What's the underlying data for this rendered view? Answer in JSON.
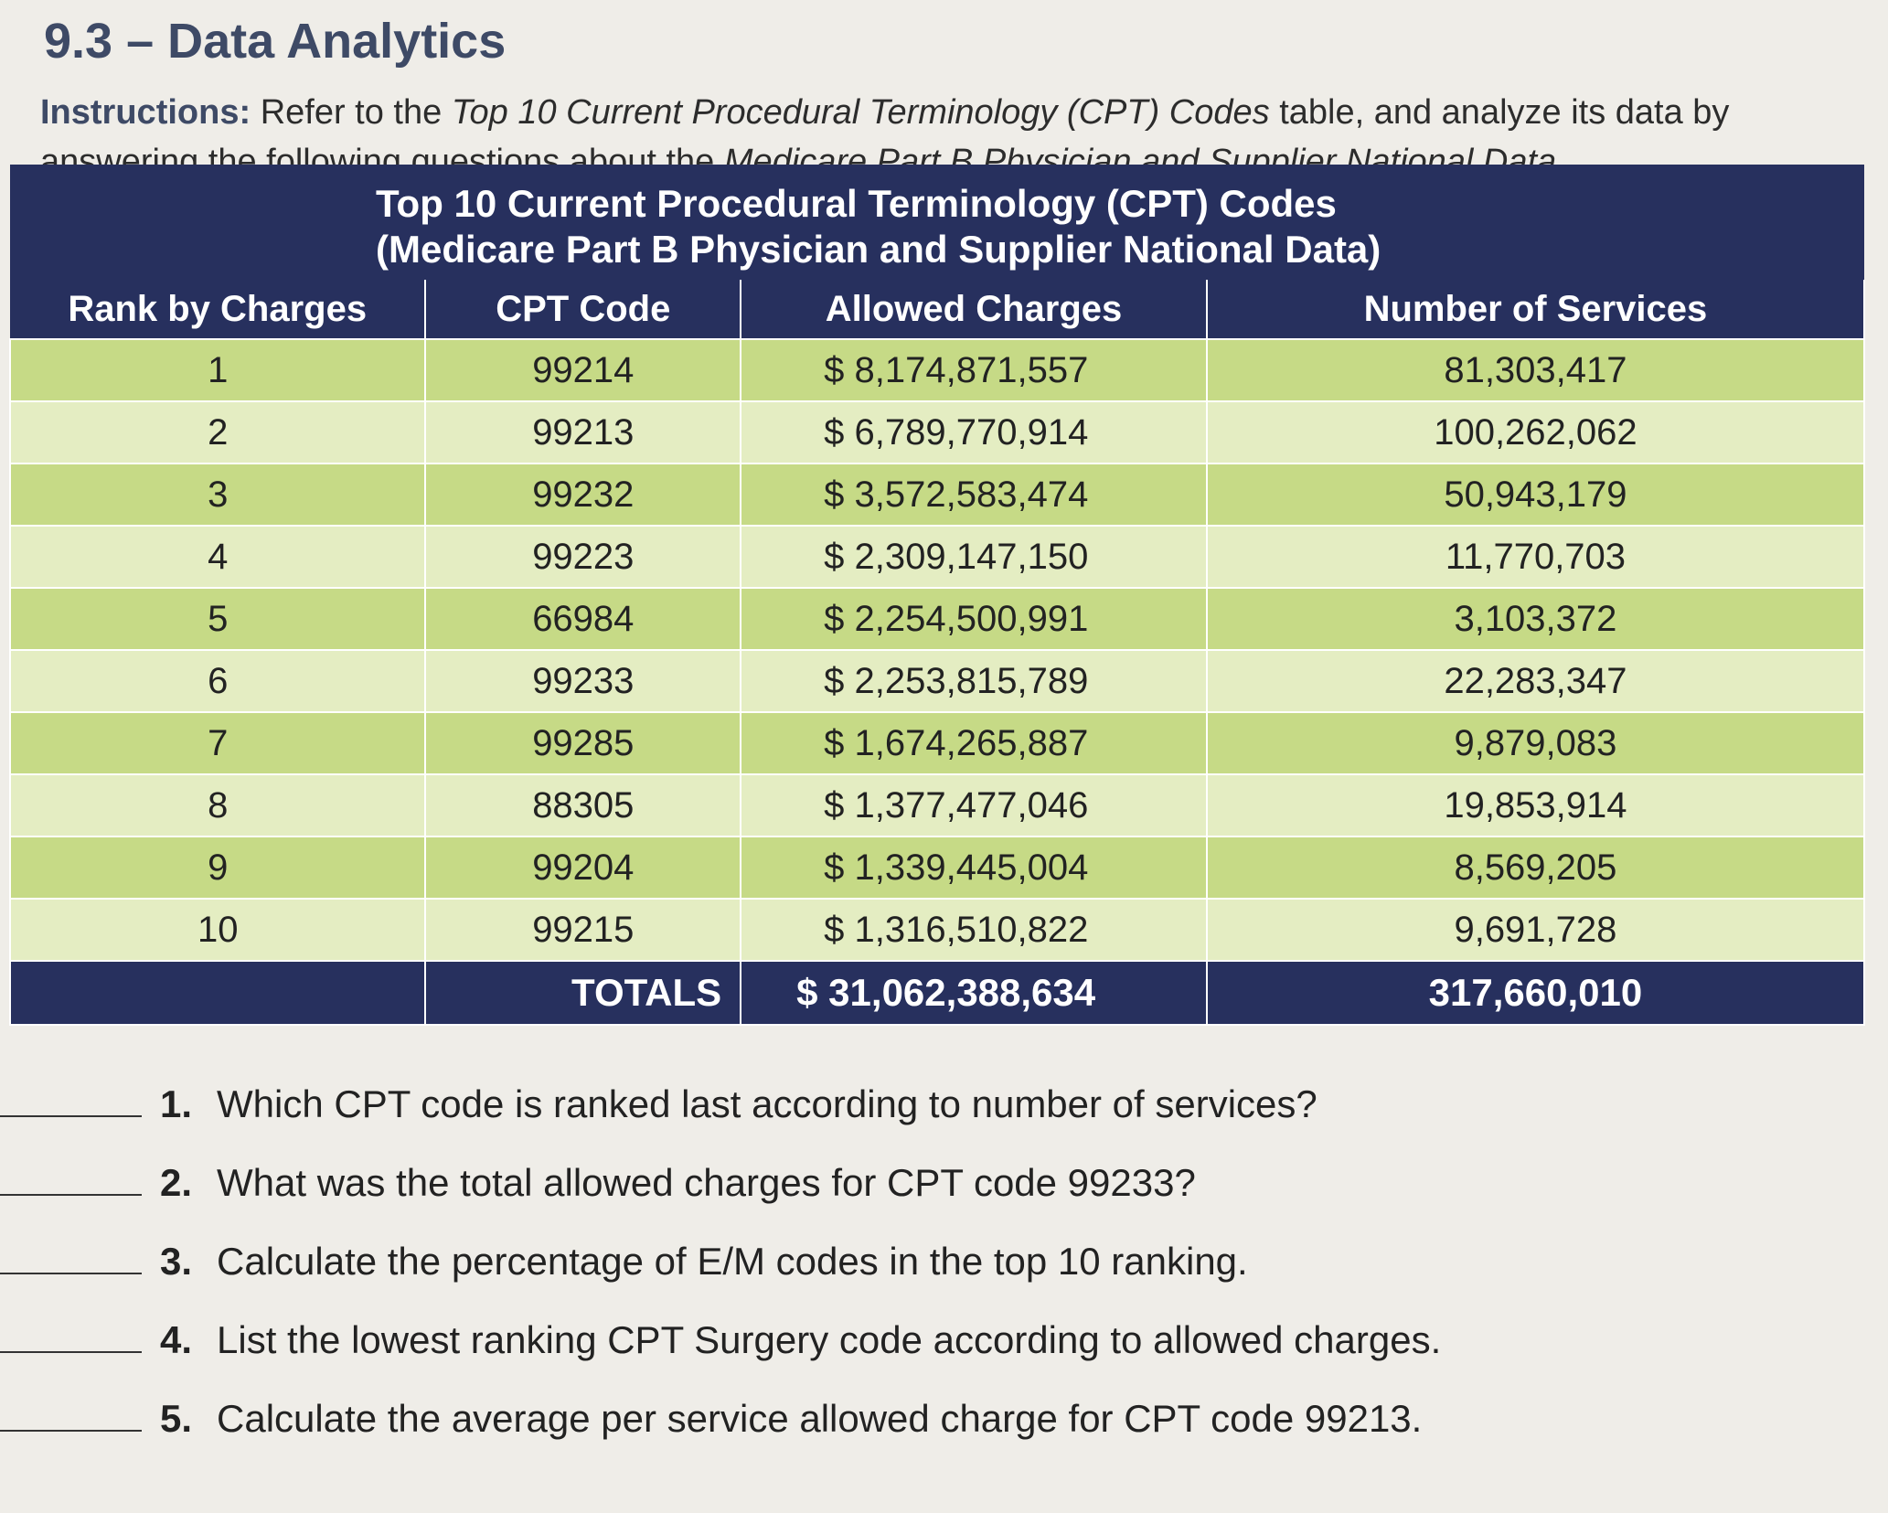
{
  "header": {
    "title": "9.3 – Data Analytics",
    "instructions": {
      "label": "Instructions:",
      "parts": [
        "Refer to the ",
        "Top 10 Current Procedural Terminology (CPT) Codes",
        " table, and analyze its data by answering the following questions about the ",
        "Medicare Part B Physician and Supplier National Data",
        "."
      ]
    }
  },
  "table": {
    "title": [
      "Top 10 Current Procedural Terminology (CPT) Codes",
      "(Medicare Part B Physician and Supplier National Data)"
    ],
    "columns": [
      "Rank by Charges",
      "CPT Code",
      "Allowed Charges",
      "Number of Services"
    ],
    "rows": [
      [
        "1",
        "99214",
        "$ 8,174,871,557",
        "81,303,417"
      ],
      [
        "2",
        "99213",
        "$ 6,789,770,914",
        "100,262,062"
      ],
      [
        "3",
        "99232",
        "$ 3,572,583,474",
        "50,943,179"
      ],
      [
        "4",
        "99223",
        "$ 2,309,147,150",
        "11,770,703"
      ],
      [
        "5",
        "66984",
        "$ 2,254,500,991",
        "3,103,372"
      ],
      [
        "6",
        "99233",
        "$ 2,253,815,789",
        "22,283,347"
      ],
      [
        "7",
        "99285",
        "$ 1,674,265,887",
        "9,879,083"
      ],
      [
        "8",
        "88305",
        "$ 1,377,477,046",
        "19,853,914"
      ],
      [
        "9",
        "99204",
        "$ 1,339,445,004",
        "8,569,205"
      ],
      [
        "10",
        "99215",
        "$ 1,316,510,822",
        "9,691,728"
      ]
    ],
    "totals": [
      "TOTALS",
      "$ 31,062,388,634",
      "317,660,010"
    ]
  },
  "questions": [
    {
      "number": "1.",
      "text": "Which CPT code is ranked last according to number of services?"
    },
    {
      "number": "2.",
      "text": "What was the total allowed charges for CPT code 99233?"
    },
    {
      "number": "3.",
      "text": "Calculate the percentage of E/M codes in the top 10 ranking."
    },
    {
      "number": "4.",
      "text": "List the lowest ranking CPT Surgery code according to allowed charges."
    },
    {
      "number": "5.",
      "text": "Calculate the average per service allowed charge for CPT code 99213."
    }
  ]
}
